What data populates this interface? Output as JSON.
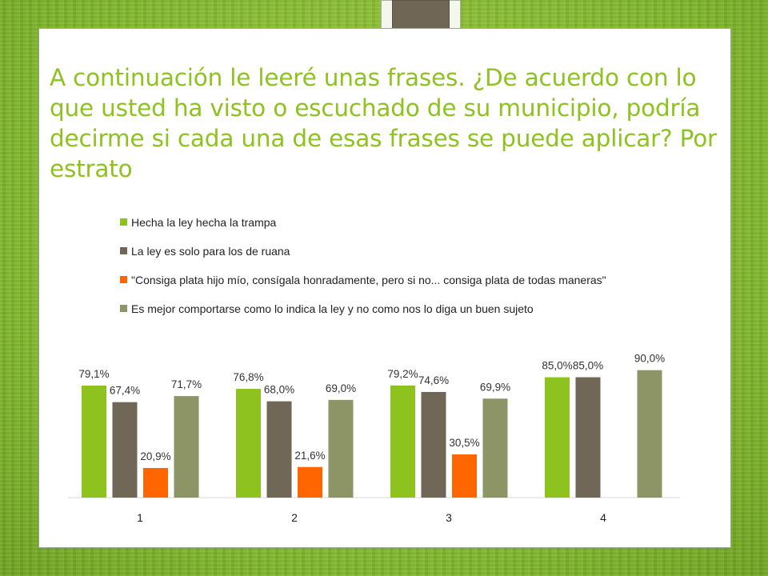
{
  "slide": {
    "title": "A continuación le leeré unas frases. ¿De acuerdo con lo que usted ha visto o escuchado de su municipio, podría decirme si cada una de esas frases se puede aplicar? Por estrato"
  },
  "colors": {
    "background": "#86bd2c",
    "title": "#8dc21f",
    "series": [
      "#8dc21f",
      "#716756",
      "#ff6600",
      "#8d9466"
    ]
  },
  "chart_data": {
    "type": "bar",
    "categories": [
      "1",
      "2",
      "3",
      "4"
    ],
    "series": [
      {
        "name": "Hecha la ley hecha la trampa",
        "values": [
          79.1,
          76.8,
          79.2,
          85.0
        ],
        "labels": [
          "79,1%",
          "76,8%",
          "79,2%",
          "85,0%"
        ]
      },
      {
        "name": "La ley es solo para los de ruana",
        "values": [
          67.4,
          68.0,
          74.6,
          85.0
        ],
        "labels": [
          "67,4%",
          "68,0%",
          "74,6%",
          "85,0%"
        ]
      },
      {
        "name": "\"Consiga plata hijo mío, consígala honradamente, pero si no... consiga plata de todas maneras\"",
        "values": [
          20.9,
          21.6,
          30.5,
          null
        ],
        "labels": [
          "20,9%",
          "21,6%",
          "30,5%",
          null
        ]
      },
      {
        "name": "Es mejor comportarse como lo indica la ley y no como nos lo diga un buen sujeto",
        "values": [
          71.7,
          69.0,
          69.9,
          90.0
        ],
        "labels": [
          "71,7%",
          "69,0%",
          "69,9%",
          "90,0%"
        ]
      }
    ],
    "ylim": [
      0,
      100
    ],
    "grid": false,
    "legend_position": "top",
    "xlabel": "",
    "ylabel": ""
  }
}
